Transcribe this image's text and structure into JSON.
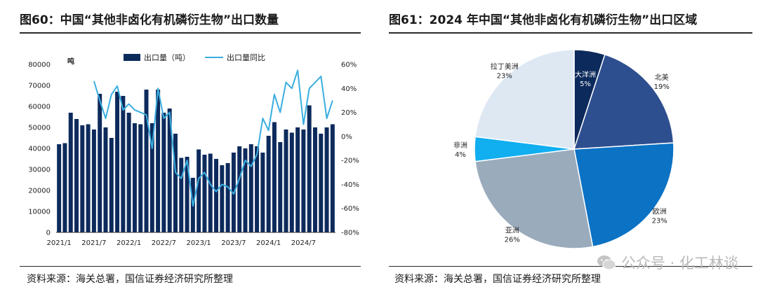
{
  "left": {
    "title": "图60：中国“其他非卤化有机磷衍生物”出口数量",
    "source": "资料来源：海关总署，国信证券经济研究所整理"
  },
  "right": {
    "title": "图61：2024 年中国“其他非卤化有机磷衍生物”出口区域",
    "source": "资料来源：海关总署，国信证券经济研究所整理"
  },
  "watermark": {
    "text": "公众号 · 化工林谈",
    "icon": "wechat-icon"
  },
  "colors": {
    "bar": "#0d2a5c",
    "line": "#3aaee0",
    "pie": [
      "#0d2a5c",
      "#2e4f8f",
      "#0b72c4",
      "#9aabbc",
      "#11aef0",
      "#dde8f3"
    ]
  },
  "chart_data": [
    {
      "type": "bar",
      "ylabel": "吨",
      "y_ticks": [
        "80000",
        "70000",
        "60000",
        "50000",
        "40000",
        "30000",
        "20000",
        "10000",
        "0"
      ],
      "y2_ticks": [
        "60%",
        "40%",
        "20%",
        "0%",
        "-20%",
        "-40%",
        "-60%",
        "-80%"
      ],
      "ylim": [
        0,
        80000
      ],
      "y2lim": [
        -0.8,
        0.6
      ],
      "x_tick_labels": [
        "2021/1",
        "2021/7",
        "2022/1",
        "2022/7",
        "2023/1",
        "2023/7",
        "2024/1",
        "2024/7"
      ],
      "x_tick_index": [
        0,
        6,
        12,
        18,
        24,
        30,
        36,
        42
      ],
      "categories": [
        "2021/1",
        "2021/2",
        "2021/3",
        "2021/4",
        "2021/5",
        "2021/6",
        "2021/7",
        "2021/8",
        "2021/9",
        "2021/10",
        "2021/11",
        "2021/12",
        "2022/1",
        "2022/2",
        "2022/3",
        "2022/4",
        "2022/5",
        "2022/6",
        "2022/7",
        "2022/8",
        "2022/9",
        "2022/10",
        "2022/11",
        "2022/12",
        "2023/1",
        "2023/2",
        "2023/3",
        "2023/4",
        "2023/5",
        "2023/6",
        "2023/7",
        "2023/8",
        "2023/9",
        "2023/10",
        "2023/11",
        "2023/12",
        "2024/1",
        "2024/2",
        "2024/3",
        "2024/4",
        "2024/5",
        "2024/6",
        "2024/7",
        "2024/8",
        "2024/9",
        "2024/10",
        "2024/11",
        "2024/12"
      ],
      "legend_position": "top-center",
      "series": [
        {
          "name": "出口量（吨）",
          "kind": "bar",
          "axis": "left",
          "values": [
            42000,
            42500,
            57000,
            54000,
            51000,
            51500,
            49000,
            66000,
            50000,
            45000,
            67000,
            65000,
            57000,
            52000,
            51500,
            68000,
            52000,
            68000,
            57000,
            59000,
            47000,
            35500,
            36000,
            26000,
            39500,
            37000,
            37500,
            35000,
            32000,
            33000,
            38000,
            41000,
            40000,
            42000,
            41000,
            38000,
            46000,
            52500,
            43000,
            49000,
            47500,
            50000,
            49000,
            60500,
            50000,
            47000,
            50000,
            51500
          ]
        },
        {
          "name": "出口量同比",
          "kind": "line",
          "axis": "right",
          "values": [
            null,
            null,
            null,
            null,
            null,
            null,
            0.46,
            0.3,
            0.15,
            0.35,
            0.42,
            0.22,
            0.27,
            0.22,
            0.2,
            0.18,
            -0.1,
            0.4,
            0.15,
            0.2,
            -0.3,
            -0.35,
            -0.2,
            -0.58,
            -0.35,
            -0.3,
            -0.4,
            -0.46,
            -0.4,
            -0.42,
            -0.48,
            -0.35,
            -0.2,
            -0.25,
            -0.15,
            0.15,
            0.05,
            0.35,
            0.2,
            0.45,
            0.4,
            0.55,
            0.1,
            0.4,
            0.45,
            0.5,
            0.15,
            0.3
          ]
        }
      ]
    },
    {
      "type": "pie",
      "slices": [
        {
          "label": "大洋洲",
          "value": 5,
          "text": "5%"
        },
        {
          "label": "北美",
          "value": 19,
          "text": "19%"
        },
        {
          "label": "欧洲",
          "value": 23,
          "text": "23%"
        },
        {
          "label": "亚洲",
          "value": 26,
          "text": "26%"
        },
        {
          "label": "非洲",
          "value": 4,
          "text": "4%"
        },
        {
          "label": "拉丁美洲",
          "value": 23,
          "text": "23%"
        }
      ]
    }
  ]
}
